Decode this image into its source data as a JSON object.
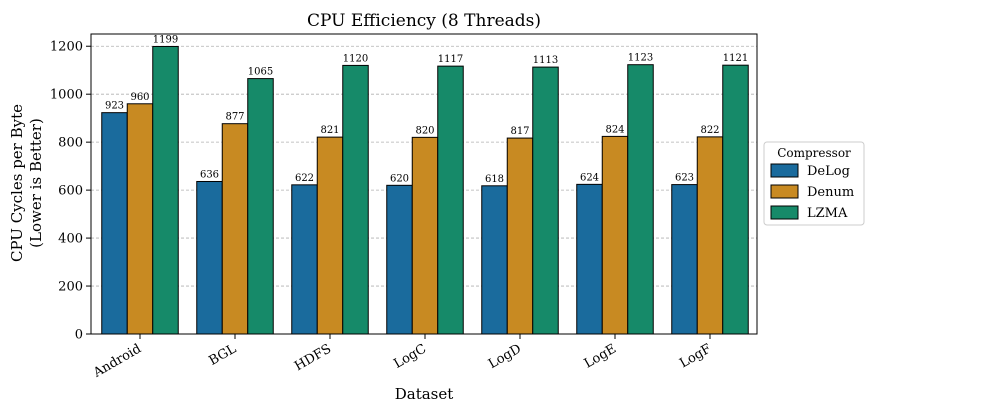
{
  "chart_data": {
    "type": "bar",
    "title": "CPU Efficiency (8 Threads)",
    "xlabel": "Dataset",
    "ylabel_line1": "CPU Cycles per Byte",
    "ylabel_line2": "(Lower is Better)",
    "categories": [
      "Android",
      "BGL",
      "HDFS",
      "LogC",
      "LogD",
      "LogE",
      "LogF"
    ],
    "series": [
      {
        "name": "DeLog",
        "color": "#1a6b9d",
        "values": [
          923,
          636,
          622,
          620,
          618,
          624,
          623
        ]
      },
      {
        "name": "Denum",
        "color": "#c88a22",
        "values": [
          960,
          877,
          821,
          820,
          817,
          824,
          822
        ]
      },
      {
        "name": "LZMA",
        "color": "#168a69",
        "values": [
          1199,
          1065,
          1120,
          1117,
          1113,
          1123,
          1121
        ]
      }
    ],
    "ylim": [
      0,
      1200
    ],
    "yticks": [
      0,
      200,
      400,
      600,
      800,
      1000,
      1200
    ],
    "grid": true,
    "legend_title": "Compressor",
    "legend_position": "right"
  }
}
